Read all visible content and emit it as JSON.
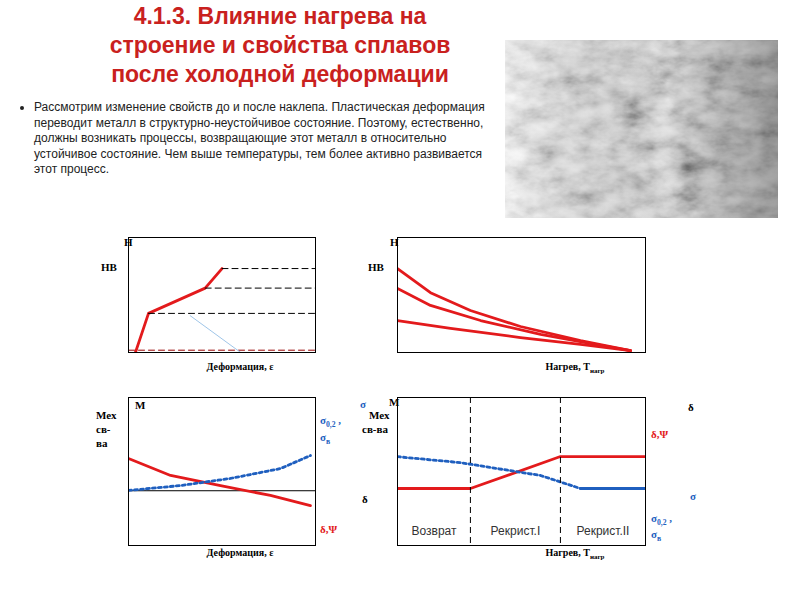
{
  "title": [
    "4.1.3. Влияние нагрева на",
    "строение и свойства сплавов",
    "после холодной деформации"
  ],
  "text": "Рассмотрим изменение свойств до и после наклепа. Пластическая деформация переводит металл в структурно-неустойчивое состояние. Поэтому, естественно, должны возникать процессы, возвращающие этот металл в относительно устойчивое состояние. Чем выше температуры, тем более активно развивается этот процесс.",
  "chart_data": [
    {
      "type": "line",
      "xlabel": [
        "Деформация, ε"
      ],
      "xlim": [
        0,
        100
      ],
      "ylim": [
        0,
        100
      ],
      "tick_labels": false,
      "annotations": [
        {
          "text": [
            "H"
          ]
        },
        {
          "text": [
            "HB"
          ]
        }
      ],
      "series": [
        {
          "x": [
            3.7,
            10.7,
            41,
            50
          ],
          "values": [
            0,
            34,
            56,
            73
          ],
          "color": "#e31a1c",
          "line_style": "solid"
        },
        {
          "x": [
            10.7,
            100
          ],
          "values": [
            34,
            34
          ],
          "color": "#000000",
          "line_style": "dashed"
        },
        {
          "x": [
            41,
            100
          ],
          "values": [
            56,
            56
          ],
          "color": "#000000",
          "line_style": "dashed"
        },
        {
          "x": [
            50,
            100
          ],
          "values": [
            73,
            73
          ],
          "color": "#000000",
          "line_style": "dashed"
        },
        {
          "x": [
            0,
            100
          ],
          "values": [
            2,
            2
          ],
          "color": "#990000",
          "line_style": "dashed"
        },
        {
          "x": [
            33,
            60
          ],
          "values": [
            32,
            0
          ],
          "color": "#9fc5e8",
          "line_style": "solid"
        }
      ]
    },
    {
      "type": "line",
      "xlabel": [
        "Нагрев, Т",
        {
          "sub": "нагр"
        }
      ],
      "xlim": [
        0,
        100
      ],
      "ylim": [
        0,
        100
      ],
      "tick_labels": false,
      "annotations": [
        {
          "text": [
            "H"
          ]
        },
        {
          "text": [
            "HB"
          ]
        }
      ],
      "series": [
        {
          "x": [
            0,
            13.3,
            29.4,
            49.6,
            73.8,
            94
          ],
          "values": [
            73,
            52,
            36.5,
            22.6,
            10.4,
            1.7
          ],
          "color": "#e31a1c",
          "line_style": "solid"
        },
        {
          "x": [
            0,
            13.3,
            33.5,
            57.7,
            81.9,
            94
          ],
          "values": [
            55.7,
            40.9,
            27.8,
            15.7,
            6.1,
            1.7
          ],
          "color": "#e31a1c",
          "line_style": "solid"
        },
        {
          "x": [
            0,
            21.4,
            49.6,
            73.8,
            94
          ],
          "values": [
            27.8,
            20.9,
            13,
            7,
            1.7
          ],
          "color": "#e31a1c",
          "line_style": "solid"
        }
      ]
    },
    {
      "type": "line",
      "xlabel": [
        "Деформация, ε"
      ],
      "xlim": [
        0,
        100
      ],
      "ylim": [
        0,
        100
      ],
      "tick_labels": false,
      "annotations": [
        {
          "text": [
            "М"
          ]
        },
        {
          "text": [
            "Мех"
          ]
        },
        {
          "text": [
            "св-"
          ]
        },
        {
          "text": [
            "ва"
          ]
        },
        {
          "text": [
            "σ"
          ],
          "color": "#1f5fbf"
        },
        {
          "text": [
            "σ",
            {
              "sub": "0,2"
            },
            " ,"
          ],
          "color": "#1f5fbf"
        },
        {
          "text": [
            "σ",
            {
              "sub": "в"
            }
          ],
          "color": "#1f5fbf"
        },
        {
          "text": [
            "δ"
          ]
        },
        {
          "text": [
            "δ,Ψ"
          ],
          "color": "#e31a1c"
        }
      ],
      "series": [
        {
          "x": [
            0,
            100
          ],
          "values": [
            37,
            37
          ],
          "color": "#000000",
          "line_style": "solid"
        },
        {
          "x": [
            0,
            22.5,
            49.2,
            75.9,
            97.3
          ],
          "values": [
            58.8,
            47.3,
            40.5,
            33.8,
            27
          ],
          "color": "#e31a1c",
          "line_style": "solid"
        },
        {
          "x": [
            0,
            27.8,
            54.5,
            81.3,
            97.3
          ],
          "values": [
            37.2,
            40.5,
            45.3,
            52,
            60.8
          ],
          "color": "#1f5fbf",
          "line_style": "dotted"
        }
      ]
    },
    {
      "type": "line",
      "xlabel": [
        "Нагрев, Т",
        {
          "sub": "нагр"
        }
      ],
      "xlim": [
        0,
        100
      ],
      "ylim": [
        0,
        100
      ],
      "tick_labels": false,
      "vlines": [
        29.4,
        65.7
      ],
      "regions": [
        "Возврат",
        "Рекрист.I",
        "Рекрист.II"
      ],
      "annotations": [
        {
          "text": [
            "М"
          ]
        },
        {
          "text": [
            "Мех"
          ]
        },
        {
          "text": [
            "св-ва"
          ]
        },
        {
          "text": [
            "δ"
          ]
        },
        {
          "text": [
            "δ,Ψ"
          ],
          "color": "#e31a1c"
        },
        {
          "text": [
            "σ"
          ],
          "color": "#1f5fbf"
        },
        {
          "text": [
            "σ",
            {
              "sub": "0,2"
            },
            " ,"
          ],
          "color": "#1f5fbf"
        },
        {
          "text": [
            "σ",
            {
              "sub": "в"
            }
          ],
          "color": "#1f5fbf"
        }
      ],
      "series": [
        {
          "x": [
            0,
            29.4,
            65.7,
            100
          ],
          "values": [
            38.5,
            38.5,
            60.1,
            60.1
          ],
          "color": "#e31a1c",
          "line_style": "solid"
        },
        {
          "x": [
            0,
            25.4,
            57.7,
            73.8
          ],
          "values": [
            60,
            56,
            47.3,
            38.5
          ],
          "color": "#1f5fbf",
          "line_style": "dotted"
        },
        {
          "x": [
            73.8,
            100
          ],
          "values": [
            38.5,
            38.5
          ],
          "color": "#1f5fbf",
          "line_style": "solid"
        }
      ]
    }
  ]
}
